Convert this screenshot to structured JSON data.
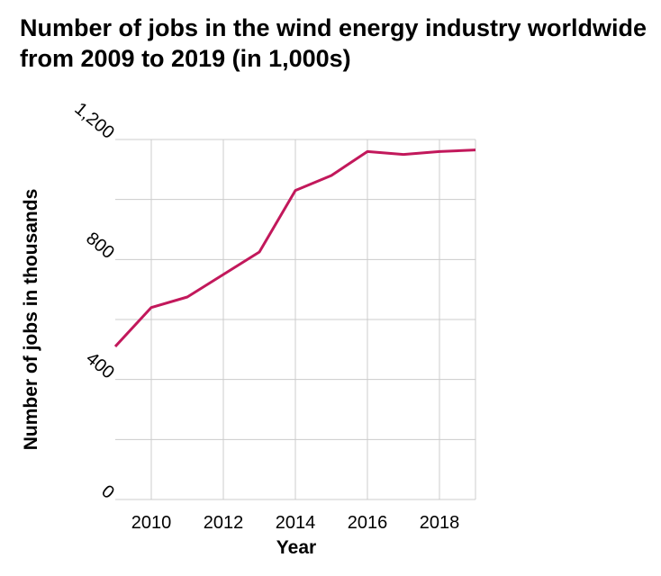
{
  "chart_data": {
    "type": "line",
    "title": "Number of jobs in the wind energy industry worldwide from 2009 to 2019 (in 1,000s)",
    "xlabel": "Year",
    "ylabel": "Number of jobs in thousands",
    "x": [
      2009,
      2010,
      2011,
      2012,
      2013,
      2014,
      2015,
      2016,
      2017,
      2018,
      2019
    ],
    "series": [
      {
        "values": [
          510,
          640,
          675,
          750,
          825,
          1030,
          1080,
          1160,
          1150,
          1160,
          1165
        ]
      }
    ],
    "xlim": [
      2009,
      2019
    ],
    "ylim": [
      0,
      1200
    ],
    "x_ticks": [
      2010,
      2012,
      2014,
      2016,
      2018
    ],
    "x_tick_labels": [
      "2010",
      "2012",
      "2014",
      "2016",
      "2018"
    ],
    "y_ticks": [
      0,
      400,
      800,
      1200
    ],
    "y_tick_labels": [
      "0",
      "400",
      "800",
      "1,200"
    ],
    "y_grid": [
      0,
      200,
      400,
      600,
      800,
      1000,
      1200
    ],
    "grid": true,
    "line_color": "#c2185b",
    "grid_color": "#cccccc"
  }
}
